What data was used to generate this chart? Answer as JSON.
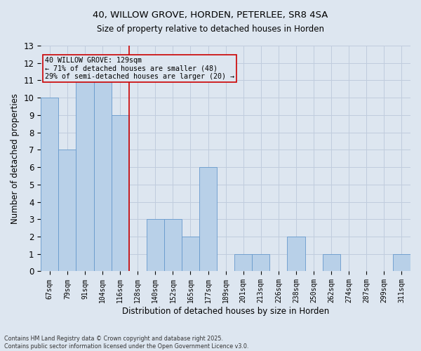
{
  "title_line1": "40, WILLOW GROVE, HORDEN, PETERLEE, SR8 4SA",
  "title_line2": "Size of property relative to detached houses in Horden",
  "xlabel": "Distribution of detached houses by size in Horden",
  "ylabel": "Number of detached properties",
  "footer_line1": "Contains HM Land Registry data © Crown copyright and database right 2025.",
  "footer_line2": "Contains public sector information licensed under the Open Government Licence v3.0.",
  "categories": [
    "67sqm",
    "79sqm",
    "91sqm",
    "104sqm",
    "116sqm",
    "128sqm",
    "140sqm",
    "152sqm",
    "165sqm",
    "177sqm",
    "189sqm",
    "201sqm",
    "213sqm",
    "226sqm",
    "238sqm",
    "250sqm",
    "262sqm",
    "274sqm",
    "287sqm",
    "299sqm",
    "311sqm"
  ],
  "values": [
    10,
    7,
    11,
    11,
    9,
    0,
    3,
    3,
    2,
    6,
    0,
    1,
    1,
    0,
    2,
    0,
    1,
    0,
    0,
    0,
    1
  ],
  "bar_color": "#b8d0e8",
  "bar_edge_color": "#6699cc",
  "grid_color": "#c0ccdd",
  "bg_color": "#dde6f0",
  "vline_x": 4.5,
  "vline_color": "#cc0000",
  "annotation_text": "40 WILLOW GROVE: 129sqm\n← 71% of detached houses are smaller (48)\n29% of semi-detached houses are larger (20) →",
  "annotation_box_color": "#cc0000",
  "ylim": [
    0,
    13
  ],
  "yticks": [
    0,
    1,
    2,
    3,
    4,
    5,
    6,
    7,
    8,
    9,
    10,
    11,
    12,
    13
  ]
}
